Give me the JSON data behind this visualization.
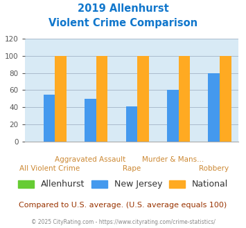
{
  "title_line1": "2019 Allenhurst",
  "title_line2": "Violent Crime Comparison",
  "categories": [
    "All Violent Crime",
    "Aggravated Assault",
    "Rape",
    "Murder & Mans...",
    "Robbery"
  ],
  "cat_labels_row1": [
    "",
    "Aggravated Assault",
    "",
    "Murder & Mans...",
    ""
  ],
  "cat_labels_row2": [
    "All Violent Crime",
    "",
    "Rape",
    "",
    "Robbery"
  ],
  "series": {
    "Allenhurst": [
      0,
      0,
      0,
      0,
      0
    ],
    "New Jersey": [
      55,
      50,
      41,
      60,
      80
    ],
    "National": [
      100,
      100,
      100,
      100,
      100
    ]
  },
  "colors": {
    "Allenhurst": "#66cc33",
    "New Jersey": "#4499ee",
    "National": "#ffaa22"
  },
  "ylim": [
    0,
    120
  ],
  "yticks": [
    0,
    20,
    40,
    60,
    80,
    100,
    120
  ],
  "bg_color": "#d8eaf5",
  "title_color": "#1177cc",
  "xlabel_color": "#cc8833",
  "xlabel_fontsize": 7.5,
  "legend_fontsize": 9,
  "footer_text": "Compared to U.S. average. (U.S. average equals 100)",
  "footer_color": "#993300",
  "credit_text": "© 2025 CityRating.com - https://www.cityrating.com/crime-statistics/",
  "credit_color": "#888888",
  "bar_width": 0.28,
  "grid_color": "#aabbcc",
  "ytick_color": "#555555",
  "ytick_fontsize": 7.5
}
